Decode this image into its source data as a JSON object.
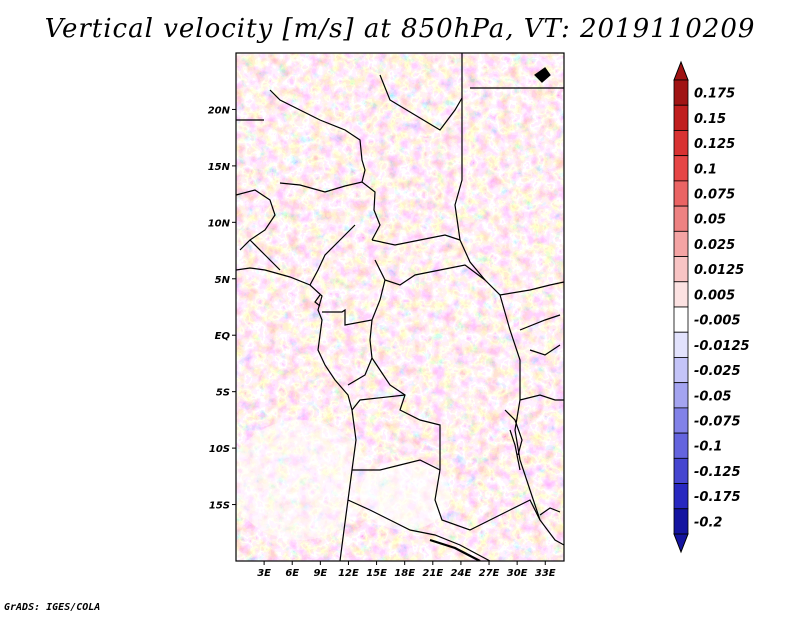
{
  "title": "Vertical velocity [m/s] at 850hPa, VT: 2019110209",
  "footer": "GrADS: IGES/COLA",
  "map": {
    "region": "Central Africa",
    "lon_range": [
      0,
      35
    ],
    "lat_range": [
      -20,
      25
    ],
    "lat_ticks": [
      "20N",
      "15N",
      "10N",
      "5N",
      "EQ",
      "5S",
      "10S",
      "15S"
    ],
    "lon_ticks": [
      "3E",
      "6E",
      "9E",
      "12E",
      "15E",
      "18E",
      "21E",
      "24E",
      "27E",
      "30E",
      "33E"
    ]
  },
  "colorbar": {
    "levels": [
      "0.175",
      "0.15",
      "0.125",
      "0.1",
      "0.075",
      "0.05",
      "0.025",
      "0.0125",
      "0.005",
      "-0.005",
      "-0.0125",
      "-0.025",
      "-0.05",
      "-0.075",
      "-0.1",
      "-0.125",
      "-0.175",
      "-0.2"
    ],
    "colors": [
      "#a01414",
      "#c01e1e",
      "#d83232",
      "#e64646",
      "#ea6464",
      "#ee8282",
      "#f4a4a4",
      "#f8c4c4",
      "#fce2e2",
      "#ffffff",
      "#e2e2fc",
      "#c4c4f8",
      "#a4a4f0",
      "#8282e8",
      "#6464de",
      "#4646d0",
      "#2828c0",
      "#1414a0"
    ]
  }
}
